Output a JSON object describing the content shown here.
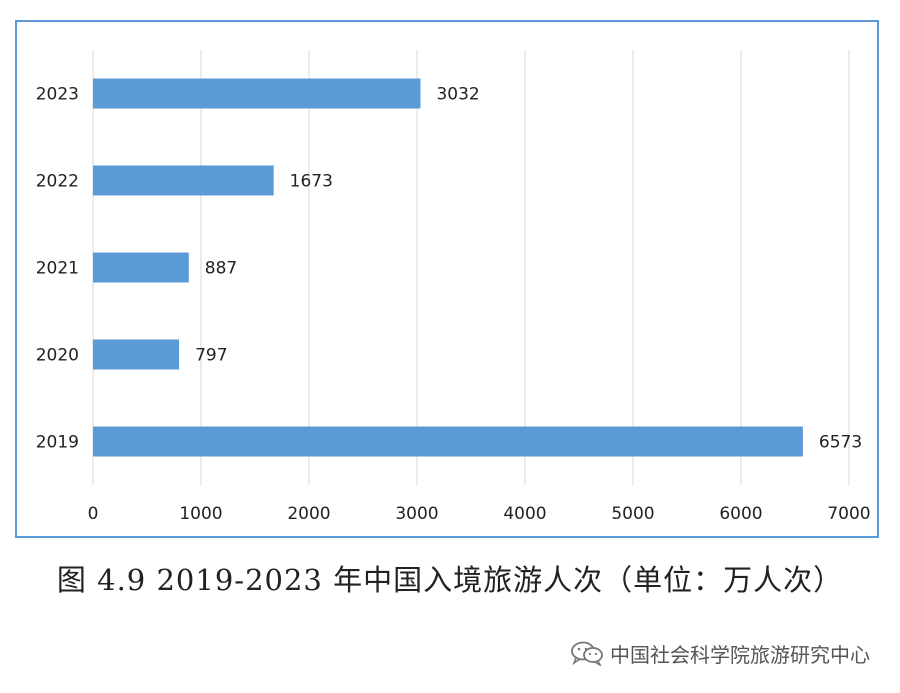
{
  "chart_data": {
    "type": "bar",
    "orientation": "horizontal",
    "categories": [
      "2023",
      "2022",
      "2021",
      "2020",
      "2019"
    ],
    "values": [
      3032,
      1673,
      887,
      797,
      6573
    ],
    "xlim": [
      0,
      7000
    ],
    "xticks": [
      0,
      1000,
      2000,
      3000,
      4000,
      5000,
      6000,
      7000
    ],
    "grid": true,
    "legend": "none",
    "bar_color": "#5b9bd5",
    "grid_color": "#d9d9d9"
  },
  "caption": "图 4.9 2019-2023 年中国入境旅游人次（单位：万人次）",
  "watermark": {
    "icon": "wechat-icon",
    "text": "中国社会科学院旅游研究中心"
  }
}
